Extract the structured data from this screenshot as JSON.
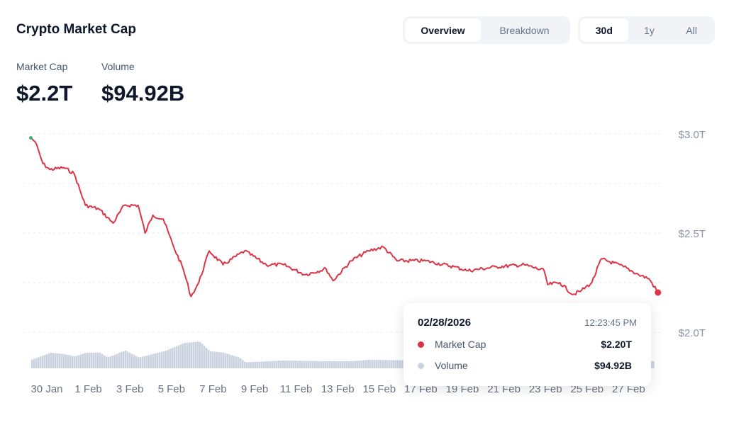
{
  "header": {
    "title": "Crypto Market Cap"
  },
  "view_tabs": [
    {
      "label": "Overview",
      "active": true
    },
    {
      "label": "Breakdown",
      "active": false
    }
  ],
  "range_tabs": [
    {
      "label": "30d",
      "active": true
    },
    {
      "label": "1y",
      "active": false
    },
    {
      "label": "All",
      "active": false
    }
  ],
  "metrics": [
    {
      "label": "Market Cap",
      "value": "$2.2T"
    },
    {
      "label": "Volume",
      "value": "$94.92B"
    }
  ],
  "tooltip": {
    "date": "02/28/2026",
    "time": "12:23:45 PM",
    "rows": [
      {
        "label": "Market Cap",
        "value": "$2.20T",
        "color": "#dc3545"
      },
      {
        "label": "Volume",
        "value": "$94.92B",
        "color": "#cbd2e0"
      }
    ]
  },
  "chart_data": {
    "type": "line",
    "title": "",
    "xlabel": "",
    "ylabel": "",
    "y_ticks": [
      "$3.0T",
      "$2.5T",
      "$2.0T"
    ],
    "ylim": [
      1.82,
      3.0
    ],
    "grid": true,
    "x_ticks": [
      "30 Jan",
      "1 Feb",
      "3 Feb",
      "5 Feb",
      "7 Feb",
      "9 Feb",
      "11 Feb",
      "13 Feb",
      "15 Feb",
      "17 Feb",
      "19 Feb",
      "21 Feb",
      "23 Feb",
      "25 Feb",
      "27 Feb"
    ],
    "colors": {
      "line": "#dc3545",
      "start_dot": "#3cb371",
      "volume": "#cbd2e0"
    },
    "series": [
      {
        "key": "market_cap",
        "unit": "T USD",
        "points": [
          [
            "2026-01-29T08:00",
            2.98
          ],
          [
            "2026-01-29T13:00",
            2.96
          ],
          [
            "2026-01-29T22:00",
            2.85
          ],
          [
            "2026-01-30T06:00",
            2.82
          ],
          [
            "2026-01-30T22:00",
            2.83
          ],
          [
            "2026-01-31T10:00",
            2.8
          ],
          [
            "2026-01-31T23:00",
            2.64
          ],
          [
            "2026-02-01T15:00",
            2.62
          ],
          [
            "2026-02-02T07:00",
            2.55
          ],
          [
            "2026-02-02T20:00",
            2.64
          ],
          [
            "2026-02-03T12:00",
            2.64
          ],
          [
            "2026-02-03T20:00",
            2.5
          ],
          [
            "2026-02-04T05:00",
            2.59
          ],
          [
            "2026-02-04T17:00",
            2.57
          ],
          [
            "2026-02-05T05:00",
            2.43
          ],
          [
            "2026-02-05T16:00",
            2.32
          ],
          [
            "2026-02-06T01:00",
            2.18
          ],
          [
            "2026-02-06T10:00",
            2.25
          ],
          [
            "2026-02-06T22:00",
            2.41
          ],
          [
            "2026-02-07T14:00",
            2.34
          ],
          [
            "2026-02-08T15:00",
            2.41
          ],
          [
            "2026-02-09T16:00",
            2.34
          ],
          [
            "2026-02-10T12:00",
            2.34
          ],
          [
            "2026-02-11T13:00",
            2.29
          ],
          [
            "2026-02-12T13:00",
            2.32
          ],
          [
            "2026-02-12T21:00",
            2.26
          ],
          [
            "2026-02-13T18:00",
            2.36
          ],
          [
            "2026-02-14T14:00",
            2.41
          ],
          [
            "2026-02-15T07:00",
            2.43
          ],
          [
            "2026-02-15T23:00",
            2.36
          ],
          [
            "2026-02-17T08:00",
            2.36
          ],
          [
            "2026-02-18T17:00",
            2.33
          ],
          [
            "2026-02-19T09:00",
            2.31
          ],
          [
            "2026-02-20T18:00",
            2.33
          ],
          [
            "2026-02-22T02:00",
            2.34
          ],
          [
            "2026-02-23T01:00",
            2.31
          ],
          [
            "2026-02-23T05:00",
            2.24
          ],
          [
            "2026-02-23T19:00",
            2.25
          ],
          [
            "2026-02-24T10:00",
            2.19
          ],
          [
            "2026-02-24T20:00",
            2.21
          ],
          [
            "2026-02-25T08:00",
            2.25
          ],
          [
            "2026-02-25T19:00",
            2.37
          ],
          [
            "2026-02-26T21:00",
            2.33
          ],
          [
            "2026-02-27T14:00",
            2.29
          ],
          [
            "2026-02-28T02:00",
            2.27
          ],
          [
            "2026-02-28T12:23",
            2.2
          ]
        ]
      },
      {
        "key": "volume",
        "unit": "B USD",
        "points": [
          [
            "2026-01-29T08:00",
            115
          ],
          [
            "2026-01-30T06:00",
            210
          ],
          [
            "2026-01-30T22:00",
            190
          ],
          [
            "2026-01-31T10:00",
            160
          ],
          [
            "2026-01-31T23:00",
            210
          ],
          [
            "2026-02-01T15:00",
            210
          ],
          [
            "2026-02-02T00:00",
            145
          ],
          [
            "2026-02-02T20:00",
            240
          ],
          [
            "2026-02-03T12:00",
            145
          ],
          [
            "2026-02-04T00:00",
            180
          ],
          [
            "2026-02-04T20:00",
            240
          ],
          [
            "2026-02-05T16:00",
            340
          ],
          [
            "2026-02-06T10:00",
            360
          ],
          [
            "2026-02-06T22:00",
            230
          ],
          [
            "2026-02-07T14:00",
            210
          ],
          [
            "2026-02-08T08:00",
            145
          ],
          [
            "2026-02-08T15:00",
            80
          ],
          [
            "2026-02-09T16:00",
            95
          ],
          [
            "2026-02-10T12:00",
            105
          ],
          [
            "2026-02-12T13:00",
            95
          ],
          [
            "2026-02-13T18:00",
            95
          ],
          [
            "2026-02-14T14:00",
            115
          ],
          [
            "2026-02-18T00:00",
            100
          ],
          [
            "2026-02-22T00:00",
            95
          ],
          [
            "2026-02-26T00:00",
            100
          ],
          [
            "2026-02-28T12:23",
            94.92
          ]
        ]
      }
    ]
  }
}
